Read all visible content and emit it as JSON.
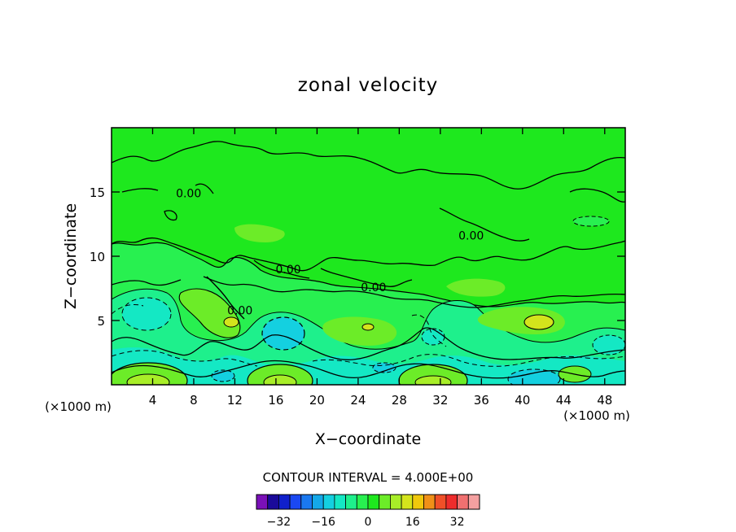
{
  "chart_data": {
    "type": "contour",
    "title": "zonal velocity",
    "xlabel": "X−coordinate",
    "ylabel": "Z−coordinate",
    "x_unit_left": "(×1000 m)",
    "x_unit_right": "(×1000 m)",
    "xlim": [
      0,
      50
    ],
    "ylim": [
      0,
      20
    ],
    "x_ticks": [
      4,
      8,
      12,
      16,
      20,
      24,
      28,
      32,
      36,
      40,
      44,
      48
    ],
    "y_ticks": [
      5,
      10,
      15
    ],
    "x_tick_labels": [
      "4",
      "8",
      "12",
      "16",
      "20",
      "24",
      "28",
      "32",
      "36",
      "40",
      "44",
      "48"
    ],
    "y_tick_labels": [
      "5",
      "10",
      "15"
    ],
    "contour_labels": [
      {
        "text": "0.00",
        "x": 7.5,
        "y": 14.9
      },
      {
        "text": "0.00",
        "x": 17.2,
        "y": 9.0
      },
      {
        "text": "0.00",
        "x": 25.5,
        "y": 7.6
      },
      {
        "text": "0.00",
        "x": 35.0,
        "y": 11.6
      },
      {
        "text": "0.00",
        "x": 12.5,
        "y": 5.8
      }
    ],
    "contour_interval_text": "CONTOUR INTERVAL = 4.000E+00",
    "colorbar": {
      "levels": [
        -36,
        -32,
        -28,
        -24,
        -20,
        -16,
        -12,
        -8,
        -4,
        0,
        4,
        8,
        12,
        16,
        20,
        24,
        28,
        32,
        36
      ],
      "tick_values": [
        -32,
        -16,
        0,
        16,
        32
      ],
      "tick_labels": [
        "−32",
        "−16",
        "0",
        "16",
        "32"
      ],
      "colors": [
        "#7a10b8",
        "#1a0a9a",
        "#1020cc",
        "#1a48f2",
        "#1a78f0",
        "#14a8e8",
        "#14d0e0",
        "#14e8c4",
        "#1ef08c",
        "#28f050",
        "#1ee81e",
        "#6cec28",
        "#a8ee28",
        "#d4e41c",
        "#f0c80c",
        "#f09018",
        "#f05028",
        "#ee2c2c",
        "#f07070",
        "#f4a0a0"
      ]
    }
  }
}
